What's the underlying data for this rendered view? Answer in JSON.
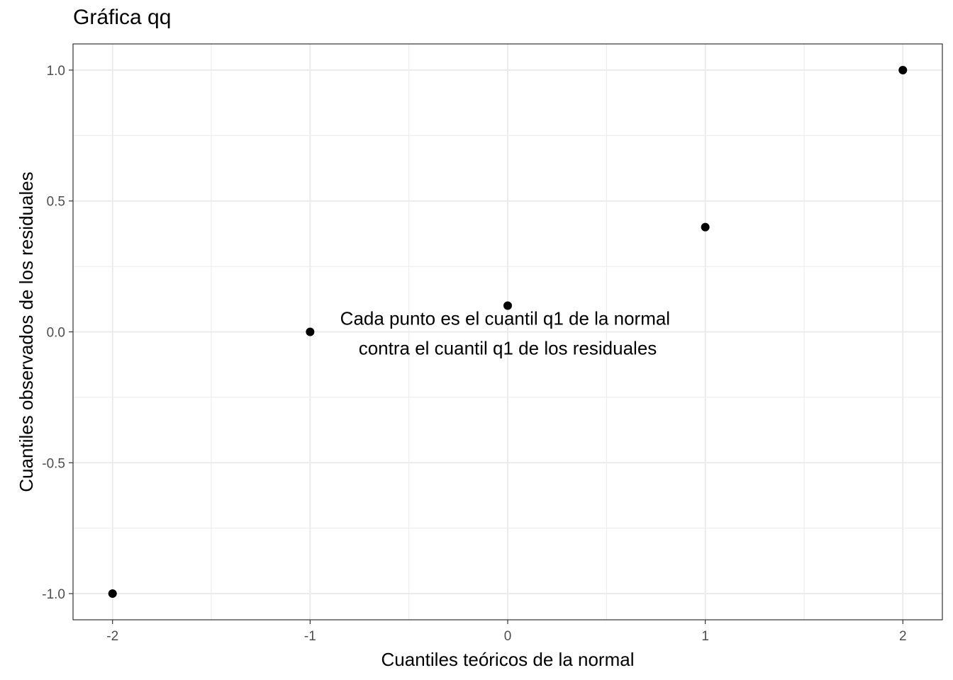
{
  "chart_data": {
    "type": "scatter",
    "title": "Gráfica qq",
    "xlabel": "Cuantiles teóricos de la normal",
    "ylabel": "Cuantiles observados de los residuales",
    "xlim": [
      -2.2,
      2.2
    ],
    "ylim": [
      -1.1,
      1.1
    ],
    "x_ticks": [
      -2,
      -1,
      0,
      1,
      2
    ],
    "x_tick_labels": [
      "-2",
      "-1",
      "0",
      "1",
      "2"
    ],
    "y_ticks": [
      -1.0,
      -0.5,
      0.0,
      0.5,
      1.0
    ],
    "y_tick_labels": [
      "-1.0",
      "-0.5",
      "0.0",
      "0.5",
      "1.0"
    ],
    "grid": true,
    "points": [
      {
        "x": -2,
        "y": -1.0
      },
      {
        "x": -1,
        "y": 0.0
      },
      {
        "x": 0,
        "y": 0.1
      },
      {
        "x": 1,
        "y": 0.4
      },
      {
        "x": 2,
        "y": 1.0
      }
    ],
    "annotation": {
      "lines": [
        "Cada punto es el cuantil q1 de la normal",
        "contra el cuantil q1 de los residuales"
      ],
      "x": 0,
      "y": 0.0
    },
    "colors": {
      "point": "#000000",
      "grid": "#ebebeb",
      "border": "#333333"
    }
  }
}
